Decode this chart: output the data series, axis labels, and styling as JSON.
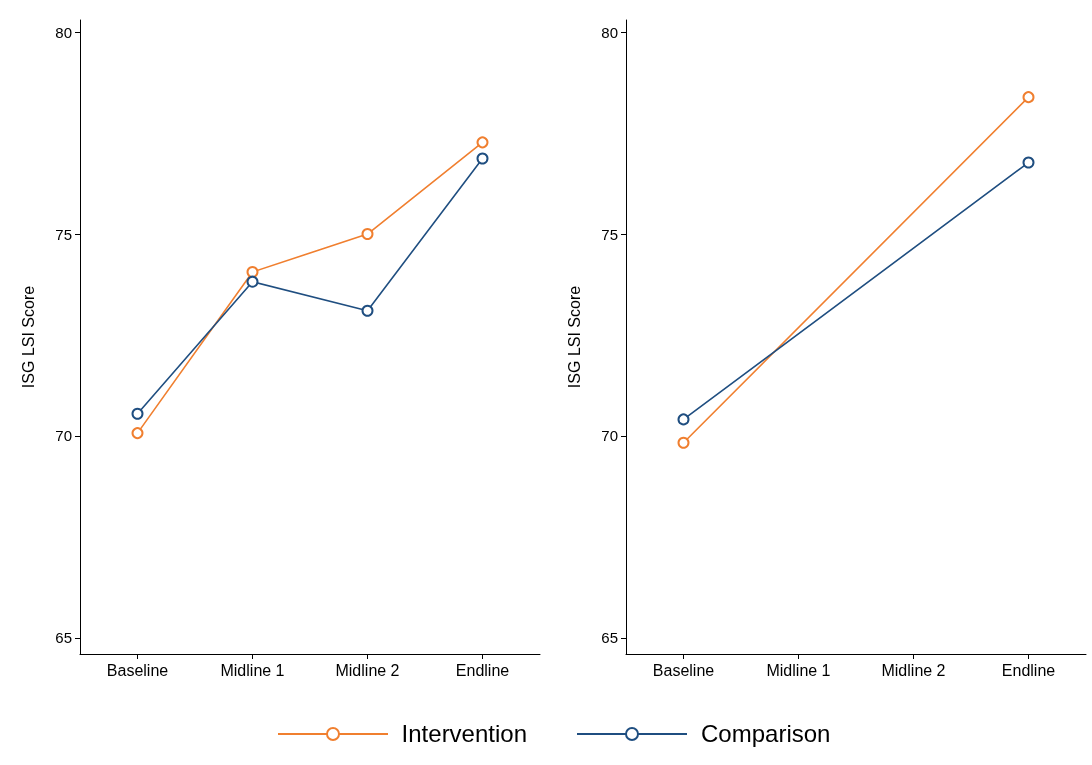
{
  "chart_data": [
    {
      "type": "line",
      "ylabel": "ISG LSI Score",
      "categories": [
        "Baseline",
        "Midline 1",
        "Midline 2",
        "Endline"
      ],
      "ylim": [
        64.6,
        80.3
      ],
      "yticks": [
        65,
        70,
        75,
        80
      ],
      "grid": false,
      "marker": "circle",
      "line_style": "solid",
      "legend": "bottom",
      "series": [
        {
          "name": "Intervention",
          "color": "#f07f2f",
          "values": [
            70.07,
            74.06,
            75.0,
            77.27
          ]
        },
        {
          "name": "Comparison",
          "color": "#1f4e80",
          "values": [
            70.55,
            73.82,
            73.1,
            76.87
          ]
        }
      ]
    },
    {
      "type": "line",
      "ylabel": "ISG LSI Score",
      "categories": [
        "Baseline",
        "Midline 1",
        "Midline 2",
        "Endline"
      ],
      "ylim": [
        64.6,
        80.3
      ],
      "yticks": [
        65,
        70,
        75,
        80
      ],
      "grid": false,
      "marker": "circle",
      "line_style": "solid",
      "series": [
        {
          "color": "#f07f2f",
          "values": [
            69.83,
            null,
            null,
            78.39
          ]
        },
        {
          "color": "#1f4e80",
          "values": [
            70.41,
            null,
            null,
            76.77
          ]
        }
      ]
    }
  ]
}
